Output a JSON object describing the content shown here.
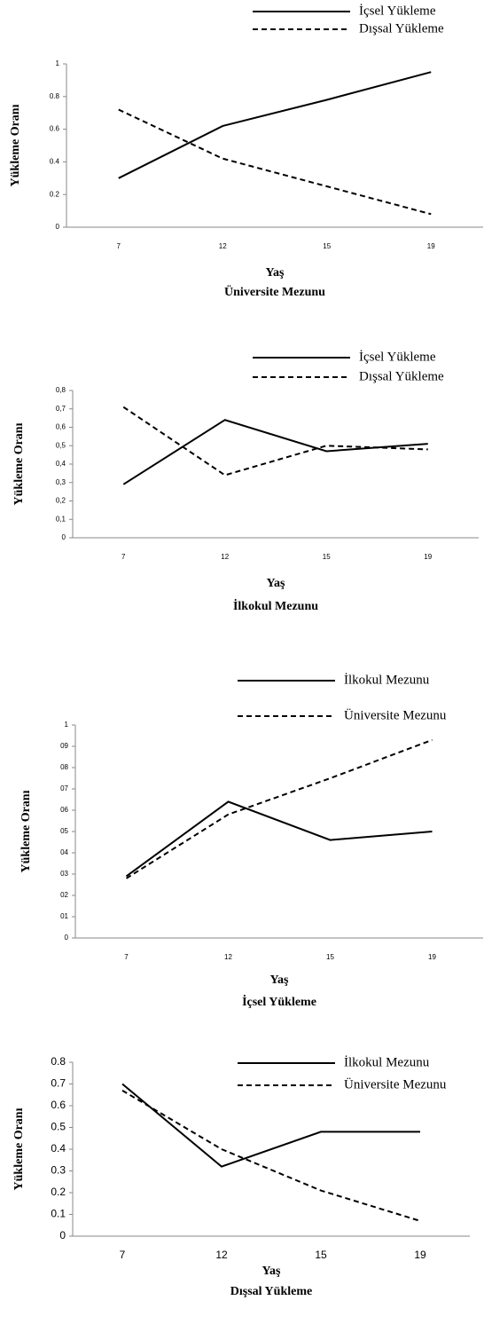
{
  "chart_data": [
    {
      "type": "line",
      "title": "Üniversite Mezunu",
      "x_label": "Yaş",
      "y_label": "Yükleme Oranı",
      "categories": [
        "7",
        "12",
        "15",
        "19"
      ],
      "series": [
        {
          "name": "İçsel Yükleme",
          "color": "#000000",
          "line_style": "solid",
          "values": [
            0.3,
            0.62,
            0.78,
            0.95
          ]
        },
        {
          "name": "Dışsal Yükleme",
          "color": "#000000",
          "line_style": "dashed",
          "values": [
            0.72,
            0.42,
            0.25,
            0.08
          ]
        }
      ],
      "ylim": [
        0,
        1
      ],
      "yticks": [
        0,
        0.2,
        0.4,
        0.6,
        0.8,
        1
      ],
      "grid": false,
      "legend": "top-right"
    },
    {
      "type": "line",
      "title": "İlkokul Mezunu",
      "x_label": "Yaş",
      "y_label": "Yükleme Oranı",
      "categories": [
        "7",
        "12",
        "15",
        "19"
      ],
      "series": [
        {
          "name": "İçsel Yükleme",
          "color": "#000000",
          "line_style": "solid",
          "values": [
            0.29,
            0.64,
            0.47,
            0.51
          ]
        },
        {
          "name": "Dışsal Yükleme",
          "color": "#000000",
          "line_style": "dashed",
          "values": [
            0.71,
            0.34,
            0.5,
            0.48
          ]
        }
      ],
      "ylim": [
        0,
        0.8
      ],
      "yticks": [
        0,
        {
          "value": 0.1,
          "label": "0,1"
        },
        {
          "value": 0.2,
          "label": "0,2"
        },
        {
          "value": 0.3,
          "label": "0,3"
        },
        {
          "value": 0.4,
          "label": "0,4"
        },
        {
          "value": 0.5,
          "label": "0,5"
        },
        {
          "value": 0.6,
          "label": "0,6"
        },
        {
          "value": 0.7,
          "label": "0,7"
        },
        {
          "value": 0.8,
          "label": "0,8"
        }
      ],
      "grid": false,
      "legend": "top-right"
    },
    {
      "type": "line",
      "title": "İçsel Yükleme",
      "x_label": "Yaş",
      "y_label": "Yükleme Oranı",
      "categories": [
        "7",
        "12",
        "15",
        "19"
      ],
      "series": [
        {
          "name": "İlkokul Mezunu",
          "color": "#000000",
          "line_style": "solid",
          "values": [
            0.29,
            0.64,
            0.46,
            0.5
          ]
        },
        {
          "name": "Üniversite Mezunu",
          "color": "#000000",
          "line_style": "dashed",
          "values": [
            0.28,
            0.58,
            0.75,
            0.93
          ]
        }
      ],
      "ylim": [
        0,
        1
      ],
      "yticks": [
        0,
        {
          "value": 0.1,
          "label": "01"
        },
        {
          "value": 0.2,
          "label": "02"
        },
        {
          "value": 0.3,
          "label": "03"
        },
        {
          "value": 0.4,
          "label": "04"
        },
        {
          "value": 0.5,
          "label": "05"
        },
        {
          "value": 0.6,
          "label": "06"
        },
        {
          "value": 0.7,
          "label": "07"
        },
        {
          "value": 0.8,
          "label": "08"
        },
        {
          "value": 0.9,
          "label": "09"
        },
        1
      ],
      "grid": false,
      "legend": "top-right"
    },
    {
      "type": "line",
      "title": "Dışsal Yükleme",
      "x_label": "Yaş",
      "y_label": "Yükleme Oranı",
      "categories": [
        "7",
        "12",
        "15",
        "19"
      ],
      "series": [
        {
          "name": "İlkokul Mezunu",
          "color": "#000000",
          "line_style": "solid",
          "values": [
            0.7,
            0.32,
            0.48,
            0.48
          ]
        },
        {
          "name": "Üniversite Mezunu",
          "color": "#000000",
          "line_style": "dashed",
          "values": [
            0.67,
            0.4,
            0.21,
            0.07
          ]
        }
      ],
      "ylim": [
        0,
        0.8
      ],
      "yticks": [
        0,
        0.1,
        0.2,
        0.3,
        0.4,
        0.5,
        0.6,
        0.7,
        0.8
      ],
      "grid": false,
      "legend": "top-right"
    }
  ]
}
